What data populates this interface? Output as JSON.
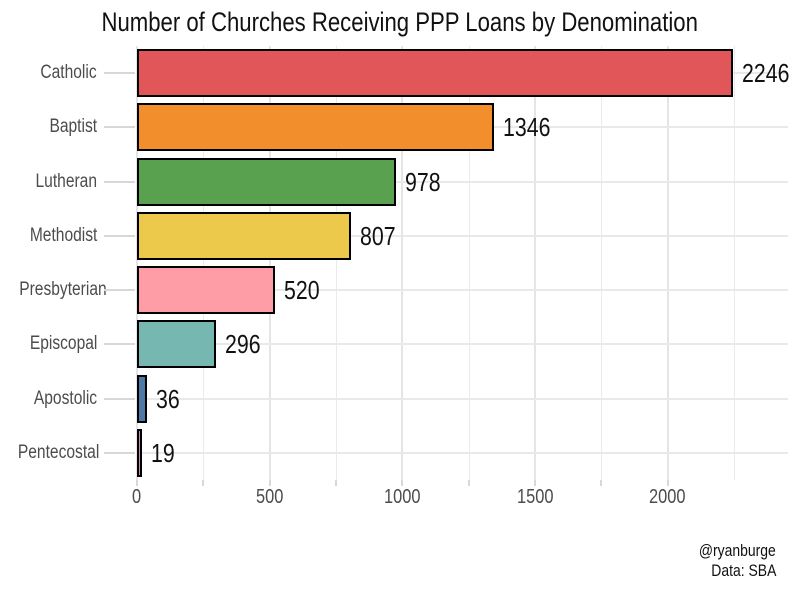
{
  "title": "Number of Churches Receiving PPP Loans by Denomination",
  "attribution": {
    "line1": "@ryanburge",
    "line2": "Data: SBA"
  },
  "chart_data": {
    "type": "bar",
    "orientation": "horizontal",
    "title": "Number of Churches Receiving PPP Loans by Denomination",
    "categories": [
      "Catholic",
      "Baptist",
      "Lutheran",
      "Methodist",
      "Presbyterian",
      "Episcopal",
      "Apostolic",
      "Pentecostal"
    ],
    "values": [
      2246,
      1346,
      978,
      807,
      520,
      296,
      36,
      19
    ],
    "value_labels": [
      "2246",
      "1346",
      "978",
      "807",
      "520",
      "296",
      "36",
      "19"
    ],
    "bar_colors": [
      "#e15759",
      "#f28e2b",
      "#59a14f",
      "#ecc94b",
      "#ff9da7",
      "#76b7b2",
      "#4e79a7",
      "#ca8cbd"
    ],
    "bar_outline_color": "#000000",
    "xlabel": "",
    "ylabel": "",
    "xlim": [
      0,
      2454
    ],
    "x_major_ticks": [
      0,
      500,
      1000,
      1500,
      2000
    ],
    "x_tick_labels": [
      "0",
      "500",
      "1000",
      "1500",
      "2000"
    ],
    "x_minor_tick_step": 250,
    "grid": "on",
    "legend": "none",
    "background_color": "#ffffff"
  }
}
